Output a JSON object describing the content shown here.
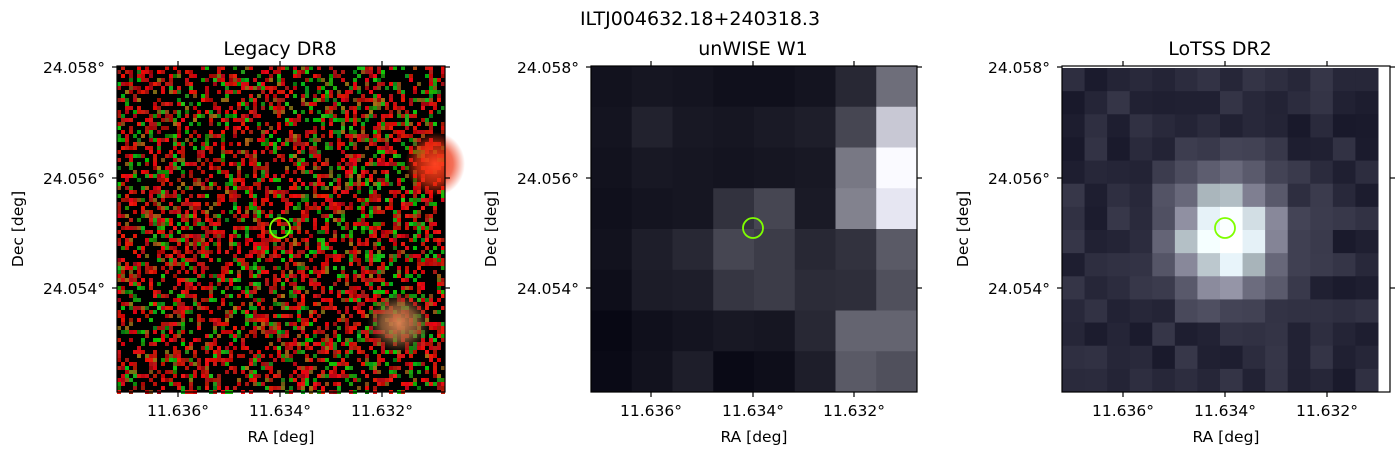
{
  "suptitle": "ILTJ004632.18+240318.3",
  "panels": [
    {
      "title": "Legacy DR8",
      "xlabel": "RA [deg]",
      "ylabel": "Dec [deg]",
      "xticks": [
        "11.636°",
        "11.634°",
        "11.632°"
      ],
      "yticks": [
        "24.058°",
        "24.056°",
        "24.054°"
      ]
    },
    {
      "title": "unWISE W1",
      "xlabel": "RA [deg]",
      "ylabel": "Dec [deg]",
      "xticks": [
        "11.636°",
        "11.634°",
        "11.632°"
      ],
      "yticks": [
        "24.058°",
        "24.056°",
        "24.054°"
      ]
    },
    {
      "title": "LoTSS DR2",
      "xlabel": "RA [deg]",
      "ylabel": "Dec [deg]",
      "xticks": [
        "11.636°",
        "11.634°",
        "11.632°"
      ],
      "yticks": [
        "24.058°",
        "24.056°",
        "24.054°"
      ]
    }
  ],
  "colors": {
    "marker": "#7fff00",
    "background": "#000000"
  }
}
